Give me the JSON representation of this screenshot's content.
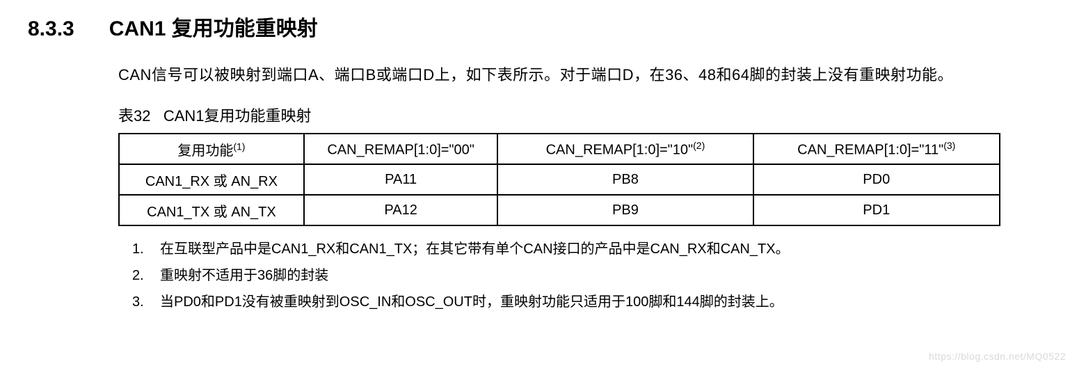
{
  "section": {
    "number": "8.3.3",
    "title": "CAN1 复用功能重映射"
  },
  "intro": "CAN信号可以被映射到端口A、端口B或端口D上，如下表所示。对于端口D，在36、48和64脚的封装上没有重映射功能。",
  "table": {
    "caption_prefix": "表32",
    "caption_text": "CAN1复用功能重映射",
    "columns": [
      {
        "base": "复用功能",
        "sup": "(1)"
      },
      {
        "base": "CAN_REMAP[1:0]=\"00\"",
        "sup": ""
      },
      {
        "base": "CAN_REMAP[1:0]=\"10\"",
        "sup": "(2)"
      },
      {
        "base": "CAN_REMAP[1:0]=\"11\"",
        "sup": "(3)"
      }
    ],
    "rows": [
      [
        "CAN1_RX 或 AN_RX",
        "PA11",
        "PB8",
        "PD0"
      ],
      [
        "CAN1_TX 或 AN_TX",
        "PA12",
        "PB9",
        "PD1"
      ]
    ]
  },
  "footnotes": [
    {
      "num": "1.",
      "text": "在互联型产品中是CAN1_RX和CAN1_TX；在其它带有单个CAN接口的产品中是CAN_RX和CAN_TX。"
    },
    {
      "num": "2.",
      "text": "重映射不适用于36脚的封装"
    },
    {
      "num": "3.",
      "text": "当PD0和PD1没有被重映射到OSC_IN和OSC_OUT时，重映射功能只适用于100脚和144脚的封装上。"
    }
  ],
  "watermark": "https://blog.csdn.net/MQ0522",
  "style": {
    "background_color": "#ffffff",
    "text_color": "#000000",
    "border_color": "#000000",
    "watermark_color": "#d9d9d9",
    "heading_fontsize": 30,
    "body_fontsize": 22,
    "table_fontsize": 20,
    "footnote_fontsize": 20
  }
}
